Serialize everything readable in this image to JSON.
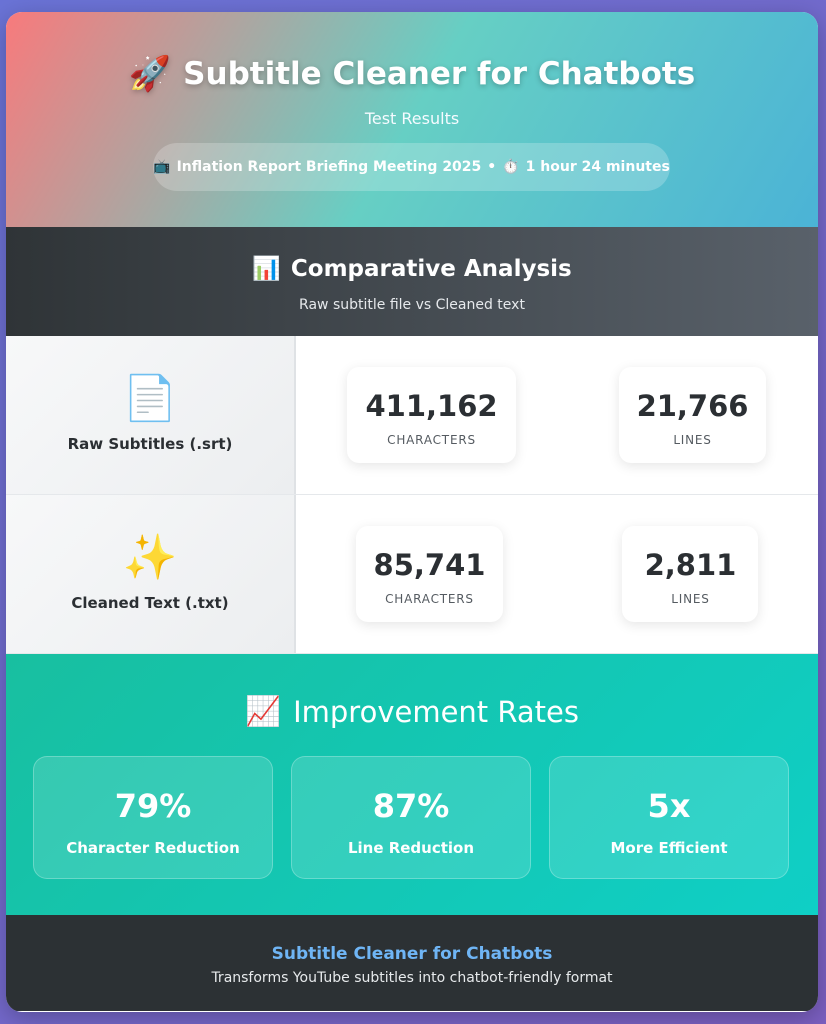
{
  "header": {
    "icon": "rocket-icon",
    "title": "Subtitle Cleaner for Chatbots",
    "subtitle": "Test Results",
    "meta_icon_tv": "tv-icon",
    "meta_video": "Inflation Report Briefing Meeting 2025",
    "meta_separator": "•",
    "meta_icon_timer": "stopwatch-icon",
    "meta_duration": "1 hour 24 minutes"
  },
  "comparison": {
    "icon": "bar-chart-icon",
    "title": "Comparative Analysis",
    "subtitle": "Raw subtitle file vs Cleaned text",
    "rows": [
      {
        "icon": "document-icon",
        "label": "Raw Subtitles (.srt)",
        "stats": [
          {
            "value": "411,162",
            "label": "CHARACTERS"
          },
          {
            "value": "21,766",
            "label": "LINES"
          }
        ]
      },
      {
        "icon": "sparkles-icon",
        "label": "Cleaned Text (.txt)",
        "stats": [
          {
            "value": "85,741",
            "label": "CHARACTERS"
          },
          {
            "value": "2,811",
            "label": "LINES"
          }
        ]
      }
    ]
  },
  "improvement": {
    "icon": "trend-up-icon",
    "title": "Improvement Rates",
    "rates": [
      {
        "value": "79%",
        "label": "Character Reduction"
      },
      {
        "value": "87%",
        "label": "Line Reduction"
      },
      {
        "value": "5x",
        "label": "More Efficient"
      }
    ]
  },
  "footer": {
    "title": "Subtitle Cleaner for Chatbots",
    "subtitle": "Transforms YouTube subtitles into chatbot-friendly format"
  }
}
